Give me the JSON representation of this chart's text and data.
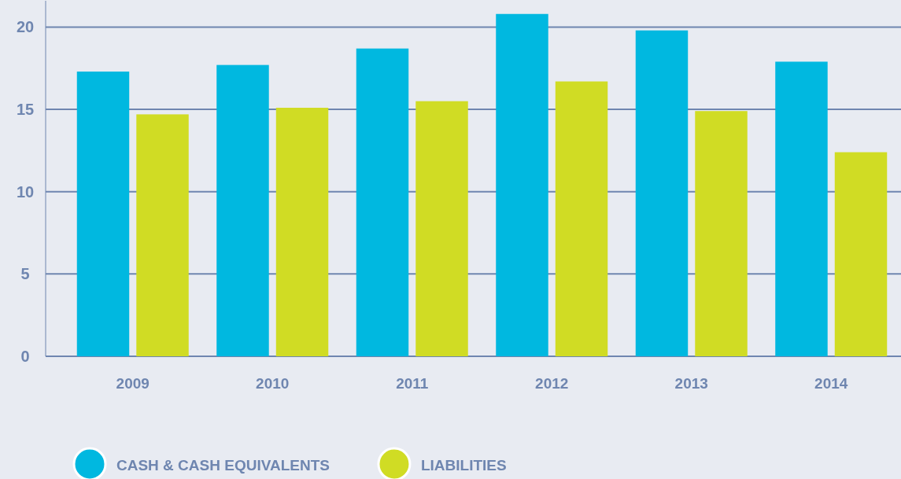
{
  "chart_data": {
    "type": "bar",
    "categories": [
      "2009",
      "2010",
      "2011",
      "2012",
      "2013",
      "2014"
    ],
    "series": [
      {
        "name": "CASH & CASH EQUIVALENTS",
        "color": "#00b8e0",
        "values": [
          17.3,
          17.7,
          18.7,
          20.8,
          19.8,
          17.9
        ]
      },
      {
        "name": "LIABILITIES",
        "color": "#d0dc24",
        "values": [
          14.7,
          15.1,
          15.5,
          16.7,
          14.9,
          12.4
        ]
      }
    ],
    "ylim": [
      0,
      21.6
    ],
    "yticks": [
      0,
      5,
      10,
      15,
      20
    ],
    "grid": "y",
    "legend": "bottom left"
  }
}
